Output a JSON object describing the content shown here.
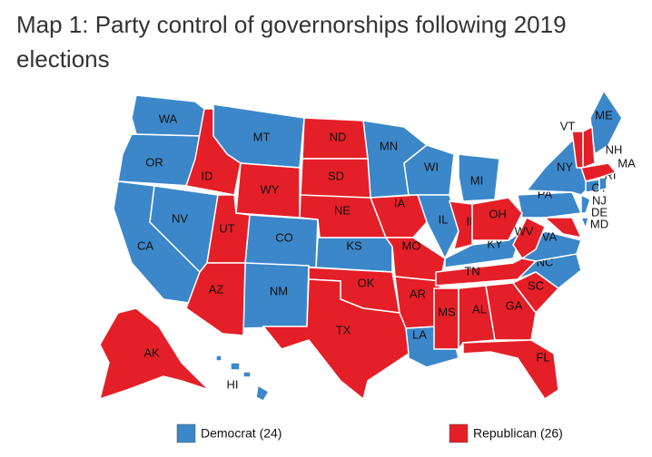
{
  "title": "Map 1: Party control of governorships following 2019 elections",
  "legend": [
    {
      "label": "Democrat (24)",
      "color": "#3b87c9",
      "states": [
        "WA",
        "OR",
        "CA",
        "NV",
        "MT",
        "CO",
        "NM",
        "KS",
        "MN",
        "WI",
        "MI",
        "IL",
        "KY",
        "LA",
        "NC",
        "VA",
        "PA",
        "NY",
        "NJ",
        "CT",
        "DE",
        "ME",
        "HI",
        "RI"
      ]
    },
    {
      "label": "Republican (26)",
      "color": "#e51f27",
      "states": [
        "ID",
        "UT",
        "AZ",
        "WY",
        "ND",
        "SD",
        "NE",
        "OK",
        "TX",
        "IA",
        "MO",
        "AR",
        "TN",
        "MS",
        "AL",
        "GA",
        "SC",
        "FL",
        "IN",
        "OH",
        "WV",
        "MD",
        "NH",
        "VT",
        "MA",
        "AK"
      ]
    }
  ]
}
